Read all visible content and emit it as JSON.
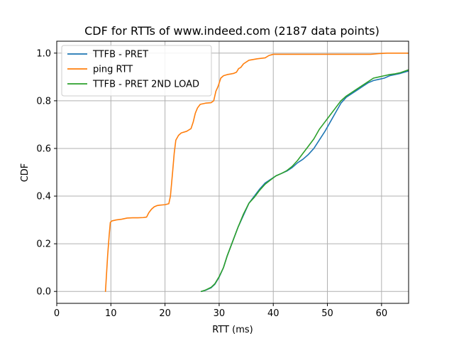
{
  "chart_data": {
    "type": "line",
    "title": "CDF for RTTs of www.indeed.com (2187 data points)",
    "xlabel": "RTT (ms)",
    "ylabel": "CDF",
    "xlim": [
      0,
      65
    ],
    "ylim": [
      -0.05,
      1.05
    ],
    "xticks": [
      0,
      10,
      20,
      30,
      40,
      50,
      60
    ],
    "yticks": [
      0.0,
      0.2,
      0.4,
      0.6,
      0.8,
      1.0
    ],
    "xtick_labels": [
      "0",
      "10",
      "20",
      "30",
      "40",
      "50",
      "60"
    ],
    "ytick_labels": [
      "0.0",
      "0.2",
      "0.4",
      "0.6",
      "0.8",
      "1.0"
    ],
    "grid": true,
    "legend_position": "top-left",
    "series": [
      {
        "name": "TTFB - PRET",
        "color": "#1f77b4",
        "x": [
          26.7,
          27.5,
          28.5,
          29.2,
          30.0,
          30.8,
          31.5,
          32.5,
          33.5,
          34.5,
          35.5,
          36.5,
          37.5,
          38.5,
          39.5,
          40.5,
          41.5,
          42.5,
          43.5,
          44.5,
          45.5,
          46.5,
          47.5,
          48.5,
          49.5,
          50.5,
          51.5,
          52.5,
          53.5,
          54.5,
          55.5,
          56.5,
          57.5,
          58.5,
          59.5,
          60.5,
          61.5,
          62.5,
          63.5,
          65.0
        ],
        "y": [
          0.0,
          0.005,
          0.015,
          0.03,
          0.06,
          0.1,
          0.15,
          0.21,
          0.27,
          0.32,
          0.37,
          0.4,
          0.43,
          0.455,
          0.47,
          0.485,
          0.495,
          0.505,
          0.52,
          0.54,
          0.555,
          0.575,
          0.6,
          0.635,
          0.67,
          0.71,
          0.75,
          0.79,
          0.815,
          0.83,
          0.845,
          0.86,
          0.875,
          0.885,
          0.89,
          0.895,
          0.905,
          0.91,
          0.915,
          0.925
        ]
      },
      {
        "name": "ping RTT",
        "color": "#ff7f0e",
        "x": [
          9.0,
          9.4,
          9.7,
          9.9,
          10.2,
          11.0,
          12.0,
          13.0,
          14.0,
          15.0,
          16.0,
          16.6,
          17.0,
          17.5,
          18.0,
          18.5,
          19.0,
          20.0,
          20.7,
          21.0,
          21.4,
          21.7,
          22.0,
          22.5,
          23.0,
          24.0,
          24.8,
          25.2,
          25.6,
          26.0,
          26.5,
          27.5,
          28.5,
          29.0,
          29.4,
          29.8,
          30.3,
          30.8,
          31.5,
          32.0,
          32.7,
          33.2,
          33.6,
          34.0,
          34.5,
          35.5,
          37.0,
          38.5,
          39.2,
          40.0,
          45.0,
          50.0,
          58.0,
          59.5,
          61.0,
          65.0
        ],
        "y": [
          0.0,
          0.15,
          0.24,
          0.29,
          0.296,
          0.3,
          0.303,
          0.308,
          0.309,
          0.309,
          0.31,
          0.312,
          0.33,
          0.345,
          0.355,
          0.36,
          0.362,
          0.364,
          0.368,
          0.4,
          0.5,
          0.58,
          0.635,
          0.655,
          0.665,
          0.672,
          0.683,
          0.71,
          0.748,
          0.77,
          0.785,
          0.79,
          0.792,
          0.8,
          0.84,
          0.86,
          0.895,
          0.905,
          0.91,
          0.912,
          0.915,
          0.92,
          0.935,
          0.94,
          0.955,
          0.97,
          0.976,
          0.98,
          0.99,
          0.995,
          0.995,
          0.995,
          0.995,
          0.998,
          1.0,
          1.0
        ]
      },
      {
        "name": "TTFB - PRET 2ND LOAD",
        "color": "#2ca02c",
        "x": [
          26.7,
          27.5,
          28.5,
          29.2,
          30.0,
          30.8,
          31.5,
          32.5,
          33.5,
          34.5,
          35.5,
          36.5,
          37.5,
          38.5,
          39.5,
          40.5,
          41.5,
          42.5,
          43.5,
          44.5,
          45.5,
          46.5,
          47.5,
          48.5,
          49.5,
          50.5,
          51.5,
          52.5,
          53.5,
          54.5,
          55.5,
          56.5,
          57.5,
          58.5,
          59.5,
          60.5,
          61.5,
          62.5,
          63.5,
          65.0
        ],
        "y": [
          0.0,
          0.006,
          0.017,
          0.032,
          0.062,
          0.1,
          0.15,
          0.21,
          0.27,
          0.325,
          0.37,
          0.395,
          0.425,
          0.45,
          0.468,
          0.485,
          0.495,
          0.507,
          0.525,
          0.55,
          0.58,
          0.61,
          0.64,
          0.68,
          0.71,
          0.74,
          0.77,
          0.8,
          0.82,
          0.835,
          0.85,
          0.865,
          0.88,
          0.895,
          0.9,
          0.905,
          0.91,
          0.913,
          0.918,
          0.93
        ]
      }
    ]
  }
}
